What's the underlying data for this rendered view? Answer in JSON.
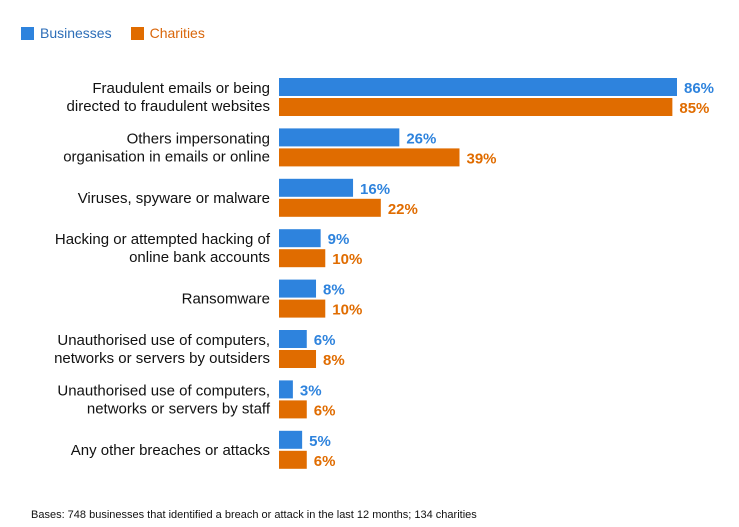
{
  "chart_data": {
    "type": "bar",
    "orientation": "horizontal",
    "categories": [
      [
        "Fraudulent emails or being",
        "directed to fraudulent websites"
      ],
      [
        "Others impersonating",
        "organisation in emails or online"
      ],
      [
        "Viruses, spyware or malware"
      ],
      [
        "Hacking or attempted hacking of",
        "online bank accounts"
      ],
      [
        "Ransomware"
      ],
      [
        "Unauthorised use of computers,",
        "networks or servers by outsiders"
      ],
      [
        "Unauthorised use of computers,",
        "networks or servers by staff"
      ],
      [
        "Any other breaches or attacks"
      ]
    ],
    "series": [
      {
        "name": "Businesses",
        "color": "#2e83dd",
        "legend_color": "#2d6eb8",
        "values": [
          86,
          26,
          16,
          9,
          8,
          6,
          3,
          5
        ]
      },
      {
        "name": "Charities",
        "color": "#e06c00",
        "legend_color": "#d9660a",
        "values": [
          85,
          39,
          22,
          10,
          10,
          8,
          6,
          6
        ]
      }
    ],
    "value_suffix": "%",
    "xlim": [
      0,
      100
    ],
    "grid": false,
    "legend_position": "top-left"
  },
  "footnote": "Bases: 748 businesses that identified a breach or attack in the last 12 months; 134 charities"
}
